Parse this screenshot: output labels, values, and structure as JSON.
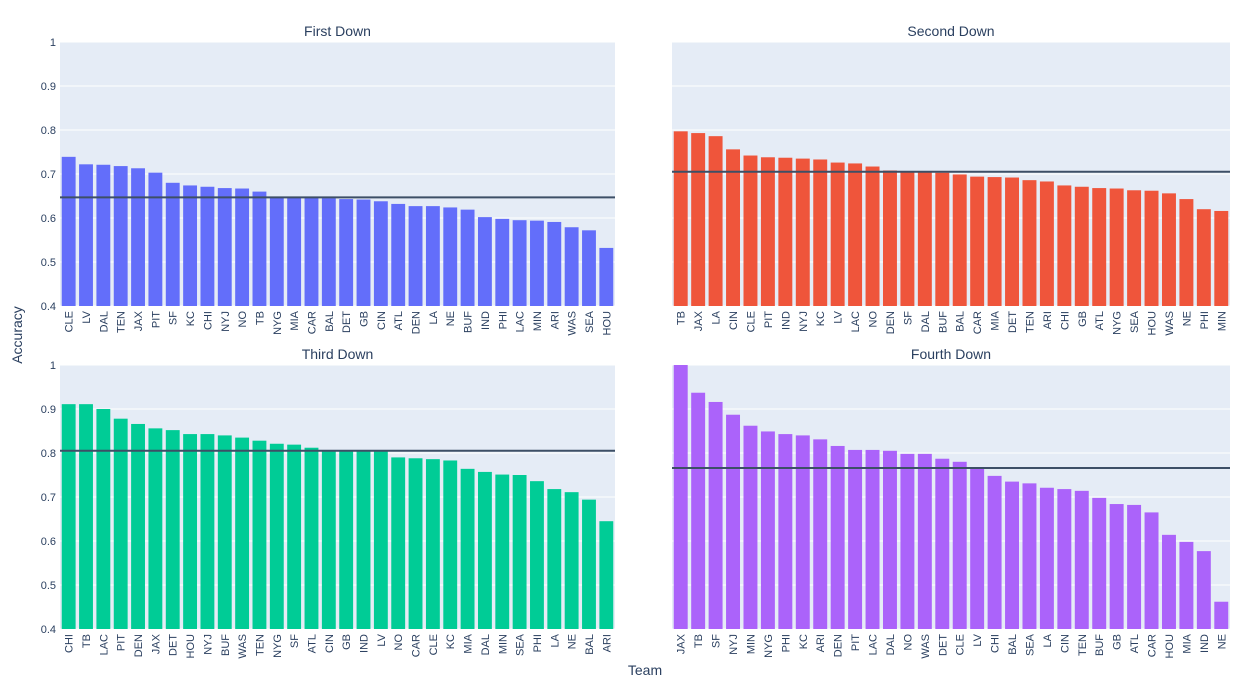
{
  "y_label": "Accuracy",
  "x_label": "Team",
  "chart_data": [
    {
      "type": "bar",
      "title": "First Down",
      "color": "#636efa",
      "ylim": [
        0.4,
        1
      ],
      "yticks": [
        0.4,
        0.5,
        0.6,
        0.7,
        0.8,
        0.9,
        1
      ],
      "show_tick_labels": true,
      "grid": true,
      "reference_line": 0.647,
      "categories": [
        "CLE",
        "LV",
        "DAL",
        "TEN",
        "JAX",
        "PIT",
        "SF",
        "KC",
        "CHI",
        "NYJ",
        "NO",
        "TB",
        "NYG",
        "MIA",
        "CAR",
        "BAL",
        "DET",
        "GB",
        "CIN",
        "ATL",
        "DEN",
        "LA",
        "NE",
        "BUF",
        "IND",
        "PHI",
        "LAC",
        "MIN",
        "ARI",
        "WAS",
        "SEA",
        "HOU"
      ],
      "values": [
        0.739,
        0.722,
        0.721,
        0.718,
        0.713,
        0.703,
        0.68,
        0.674,
        0.671,
        0.668,
        0.667,
        0.66,
        0.648,
        0.647,
        0.646,
        0.645,
        0.643,
        0.642,
        0.638,
        0.632,
        0.627,
        0.627,
        0.624,
        0.619,
        0.602,
        0.598,
        0.595,
        0.594,
        0.591,
        0.579,
        0.572,
        0.532
      ]
    },
    {
      "type": "bar",
      "title": "Second Down",
      "color": "#ef553b",
      "ylim": [
        0.4,
        1
      ],
      "yticks": [
        0.4,
        0.5,
        0.6,
        0.7,
        0.8,
        0.9,
        1
      ],
      "show_tick_labels": false,
      "grid": true,
      "reference_line": 0.705,
      "categories": [
        "TB",
        "JAX",
        "LA",
        "CIN",
        "CLE",
        "PIT",
        "IND",
        "NYJ",
        "KC",
        "LV",
        "LAC",
        "NO",
        "DEN",
        "SF",
        "DAL",
        "BUF",
        "BAL",
        "CAR",
        "MIA",
        "DET",
        "TEN",
        "ARI",
        "CHI",
        "GB",
        "ATL",
        "NYG",
        "SEA",
        "HOU",
        "WAS",
        "NE",
        "PHI",
        "MIN"
      ],
      "values": [
        0.797,
        0.793,
        0.786,
        0.756,
        0.742,
        0.738,
        0.737,
        0.735,
        0.733,
        0.726,
        0.724,
        0.717,
        0.708,
        0.705,
        0.704,
        0.703,
        0.699,
        0.694,
        0.693,
        0.692,
        0.686,
        0.683,
        0.674,
        0.671,
        0.668,
        0.667,
        0.663,
        0.662,
        0.656,
        0.643,
        0.62,
        0.616
      ]
    },
    {
      "type": "bar",
      "title": "Third Down",
      "color": "#00cc96",
      "ylim": [
        0.4,
        1
      ],
      "yticks": [
        0.4,
        0.5,
        0.6,
        0.7,
        0.8,
        0.9,
        1
      ],
      "show_tick_labels": true,
      "grid": true,
      "reference_line": 0.805,
      "categories": [
        "CHI",
        "TB",
        "LAC",
        "PIT",
        "DEN",
        "JAX",
        "DET",
        "HOU",
        "NYJ",
        "BUF",
        "WAS",
        "TEN",
        "NYG",
        "SF",
        "ATL",
        "CIN",
        "GB",
        "IND",
        "LV",
        "NO",
        "CAR",
        "CLE",
        "KC",
        "MIA",
        "DAL",
        "MIN",
        "SEA",
        "PHI",
        "LA",
        "NE",
        "BAL",
        "ARI"
      ],
      "values": [
        0.911,
        0.911,
        0.9,
        0.878,
        0.866,
        0.856,
        0.852,
        0.843,
        0.843,
        0.84,
        0.835,
        0.828,
        0.821,
        0.819,
        0.812,
        0.806,
        0.805,
        0.805,
        0.804,
        0.79,
        0.788,
        0.786,
        0.783,
        0.764,
        0.757,
        0.751,
        0.75,
        0.736,
        0.718,
        0.711,
        0.694,
        0.645
      ]
    },
    {
      "type": "bar",
      "title": "Fourth Down",
      "color": "#ab63fa",
      "ylim": [
        0.4,
        1
      ],
      "yticks": [
        0.4,
        0.5,
        0.6,
        0.7,
        0.8,
        0.9,
        1
      ],
      "show_tick_labels": false,
      "grid": true,
      "reference_line": 0.766,
      "categories": [
        "JAX",
        "TB",
        "SF",
        "NYJ",
        "MIN",
        "NYG",
        "PHI",
        "KC",
        "ARI",
        "DEN",
        "PIT",
        "LAC",
        "DAL",
        "NO",
        "WAS",
        "DET",
        "CLE",
        "LV",
        "CHI",
        "BAL",
        "SEA",
        "LA",
        "CIN",
        "TEN",
        "BUF",
        "GB",
        "ATL",
        "CAR",
        "HOU",
        "MIA",
        "IND",
        "NE"
      ],
      "values": [
        1.0,
        0.937,
        0.916,
        0.887,
        0.862,
        0.849,
        0.843,
        0.84,
        0.831,
        0.816,
        0.807,
        0.807,
        0.805,
        0.798,
        0.798,
        0.787,
        0.78,
        0.766,
        0.748,
        0.735,
        0.731,
        0.721,
        0.718,
        0.714,
        0.698,
        0.684,
        0.682,
        0.665,
        0.614,
        0.598,
        0.577,
        0.462
      ]
    }
  ]
}
